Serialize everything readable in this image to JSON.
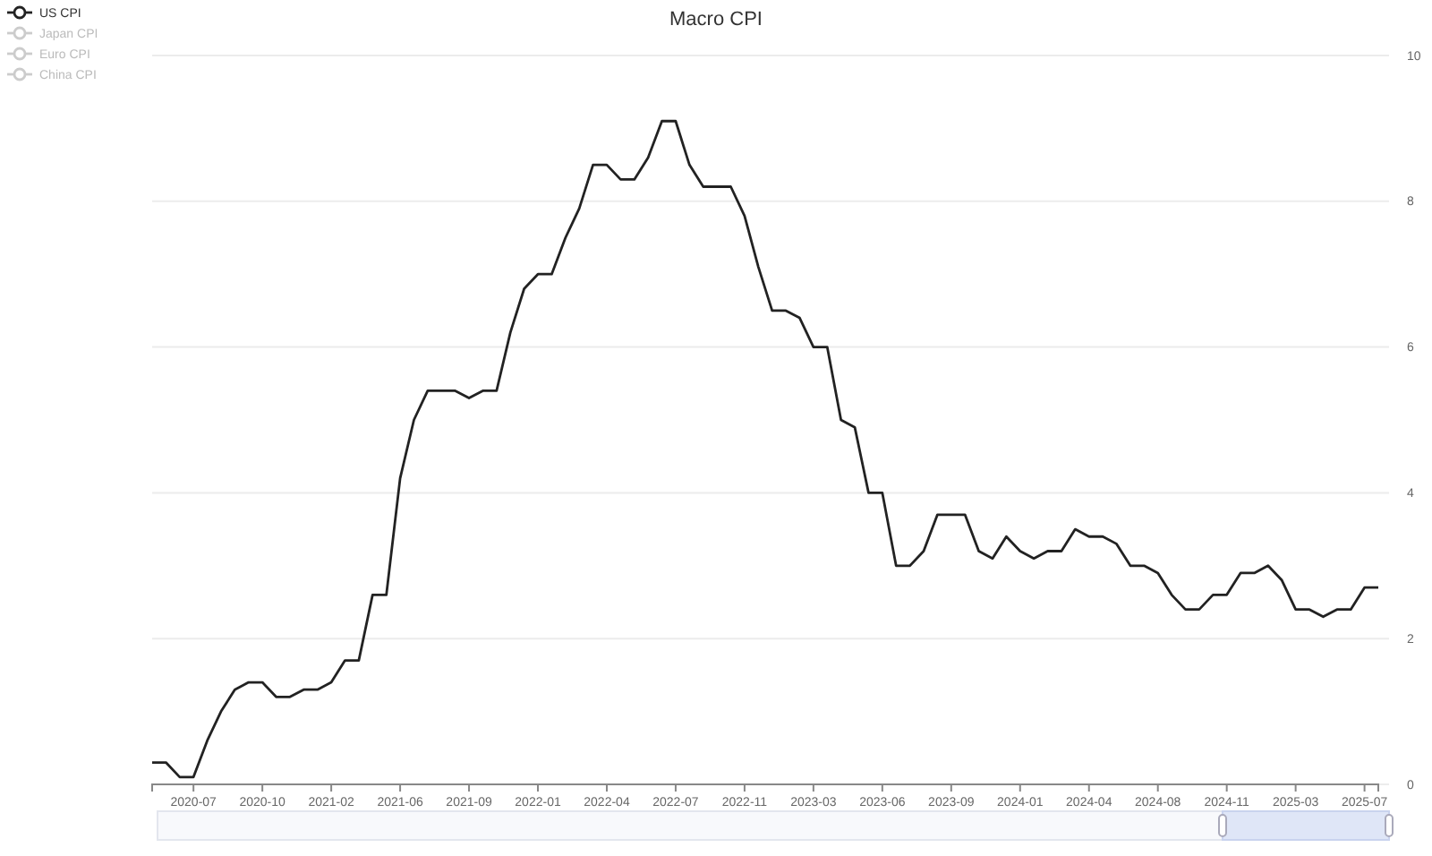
{
  "chart_data": {
    "type": "line",
    "title": "Macro CPI",
    "categories": [
      null,
      null,
      null,
      "2020-07",
      null,
      null,
      null,
      null,
      "2020-10",
      null,
      null,
      null,
      null,
      "2021-02",
      null,
      null,
      null,
      null,
      "2021-06",
      null,
      null,
      null,
      null,
      "2021-09",
      null,
      null,
      null,
      null,
      "2022-01",
      null,
      null,
      null,
      null,
      "2022-04",
      null,
      null,
      null,
      null,
      "2022-07",
      null,
      null,
      null,
      null,
      "2022-11",
      null,
      null,
      null,
      null,
      "2023-03",
      null,
      null,
      null,
      null,
      "2023-06",
      null,
      null,
      null,
      null,
      "2023-09",
      null,
      null,
      null,
      null,
      "2024-01",
      null,
      null,
      null,
      null,
      "2024-04",
      null,
      null,
      null,
      null,
      "2024-08",
      null,
      null,
      null,
      null,
      "2024-11",
      null,
      null,
      null,
      null,
      "2025-03",
      null,
      null,
      null,
      null,
      "2025-07",
      null
    ],
    "series": [
      {
        "name": "US CPI",
        "color": "#222222",
        "values": [
          0.3,
          0.3,
          0.1,
          0.1,
          0.6,
          1.0,
          1.3,
          1.4,
          1.4,
          1.2,
          1.2,
          1.3,
          1.3,
          1.4,
          1.7,
          1.7,
          2.6,
          2.6,
          4.2,
          5.0,
          5.4,
          5.4,
          5.4,
          5.3,
          5.4,
          5.4,
          6.2,
          6.8,
          7.0,
          7.0,
          7.5,
          7.9,
          8.5,
          8.5,
          8.3,
          8.3,
          8.6,
          9.1,
          9.1,
          8.5,
          8.2,
          8.2,
          8.2,
          7.8,
          7.1,
          6.5,
          6.5,
          6.4,
          6.0,
          6.0,
          5.0,
          4.9,
          4.0,
          4.0,
          3.0,
          3.0,
          3.2,
          3.7,
          3.7,
          3.7,
          3.2,
          3.1,
          3.4,
          3.2,
          3.1,
          3.2,
          3.2,
          3.5,
          3.4,
          3.4,
          3.3,
          3.0,
          3.0,
          2.9,
          2.6,
          2.4,
          2.4,
          2.6,
          2.6,
          2.9,
          2.9,
          3.0,
          2.8,
          2.4,
          2.4,
          2.3,
          2.4,
          2.4,
          2.7,
          2.7
        ]
      },
      {
        "name": "Japan CPI",
        "color": "#cccccc",
        "values": [
          null,
          null,
          null,
          null,
          null,
          null,
          null,
          null,
          null,
          null,
          null,
          null,
          null,
          null,
          null,
          null,
          null,
          null,
          null,
          null,
          null,
          null,
          null,
          null,
          null,
          null,
          null,
          null,
          null,
          null,
          null,
          null,
          null,
          null,
          null,
          null,
          null,
          null,
          null,
          null,
          null,
          null,
          null,
          null,
          null,
          null,
          null,
          null,
          null,
          null,
          null,
          null,
          null,
          null,
          null,
          null,
          null,
          null,
          null,
          null,
          null,
          null,
          null,
          null,
          null,
          null,
          null,
          null,
          null,
          null,
          null,
          null,
          null,
          null,
          null,
          null,
          null,
          null,
          null,
          null,
          null,
          null,
          null,
          null,
          null,
          null,
          null,
          null,
          null,
          null
        ]
      },
      {
        "name": "Euro CPI",
        "color": "#cccccc",
        "values": [
          null,
          null,
          null,
          null,
          null,
          null,
          null,
          null,
          null,
          null,
          null,
          null,
          null,
          null,
          null,
          null,
          null,
          null,
          null,
          null,
          null,
          null,
          null,
          null,
          null,
          null,
          null,
          null,
          null,
          null,
          null,
          null,
          null,
          null,
          null,
          null,
          null,
          null,
          null,
          null,
          null,
          null,
          null,
          null,
          null,
          null,
          null,
          null,
          null,
          null,
          null,
          null,
          null,
          null,
          null,
          null,
          null,
          null,
          null,
          null,
          null,
          null,
          null,
          null,
          null,
          null,
          null,
          null,
          null,
          null,
          null,
          null,
          null,
          null,
          null,
          null,
          null,
          null,
          null,
          null,
          null,
          null,
          null,
          null,
          null,
          null,
          null,
          null,
          null,
          null
        ]
      },
      {
        "name": "China CPI",
        "color": "#cccccc",
        "values": [
          null,
          null,
          null,
          null,
          null,
          null,
          null,
          null,
          null,
          null,
          null,
          null,
          null,
          null,
          null,
          null,
          null,
          null,
          null,
          null,
          null,
          null,
          null,
          null,
          null,
          null,
          null,
          null,
          null,
          null,
          null,
          null,
          null,
          null,
          null,
          null,
          null,
          null,
          null,
          null,
          null,
          null,
          null,
          null,
          null,
          null,
          null,
          null,
          null,
          null,
          null,
          null,
          null,
          null,
          null,
          null,
          null,
          null,
          null,
          null,
          null,
          null,
          null,
          null,
          null,
          null,
          null,
          null,
          null,
          null,
          null,
          null,
          null,
          null,
          null,
          null,
          null,
          null,
          null,
          null,
          null,
          null,
          null,
          null,
          null,
          null,
          null,
          null,
          null,
          null
        ]
      }
    ],
    "ylim": [
      0,
      10
    ],
    "yticks": [
      0,
      2,
      4,
      6,
      8,
      10
    ],
    "grid": "y",
    "legend": "top left",
    "marker": "none",
    "line_style": "solid"
  }
}
